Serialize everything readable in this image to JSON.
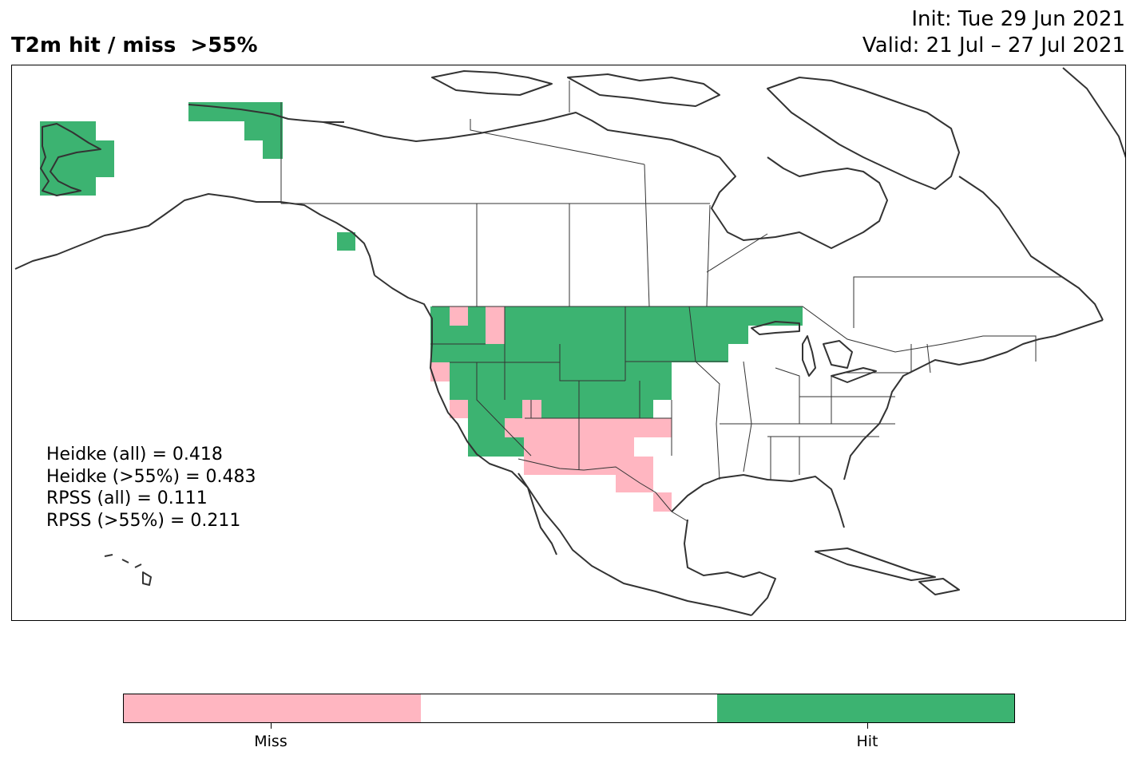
{
  "title": "T2m hit / miss  >55%",
  "init_text": "Init: Tue 29 Jun 2021",
  "valid_text": "Valid: 21 Jul – 27 Jul 2021",
  "stats": [
    "Heidke (all) = 0.418",
    "Heidke (>55%) = 0.483",
    "RPSS (all) = 0.111",
    "RPSS (>55%) = 0.211"
  ],
  "colors": {
    "miss": "#ffb6c1",
    "neutral": "#ffffff",
    "hit": "#3cb371",
    "coast": "#333333"
  },
  "colorbar": {
    "labels": [
      "Miss",
      "Hit"
    ]
  },
  "legend_categories": [
    "miss",
    "neutral",
    "hit"
  ]
}
